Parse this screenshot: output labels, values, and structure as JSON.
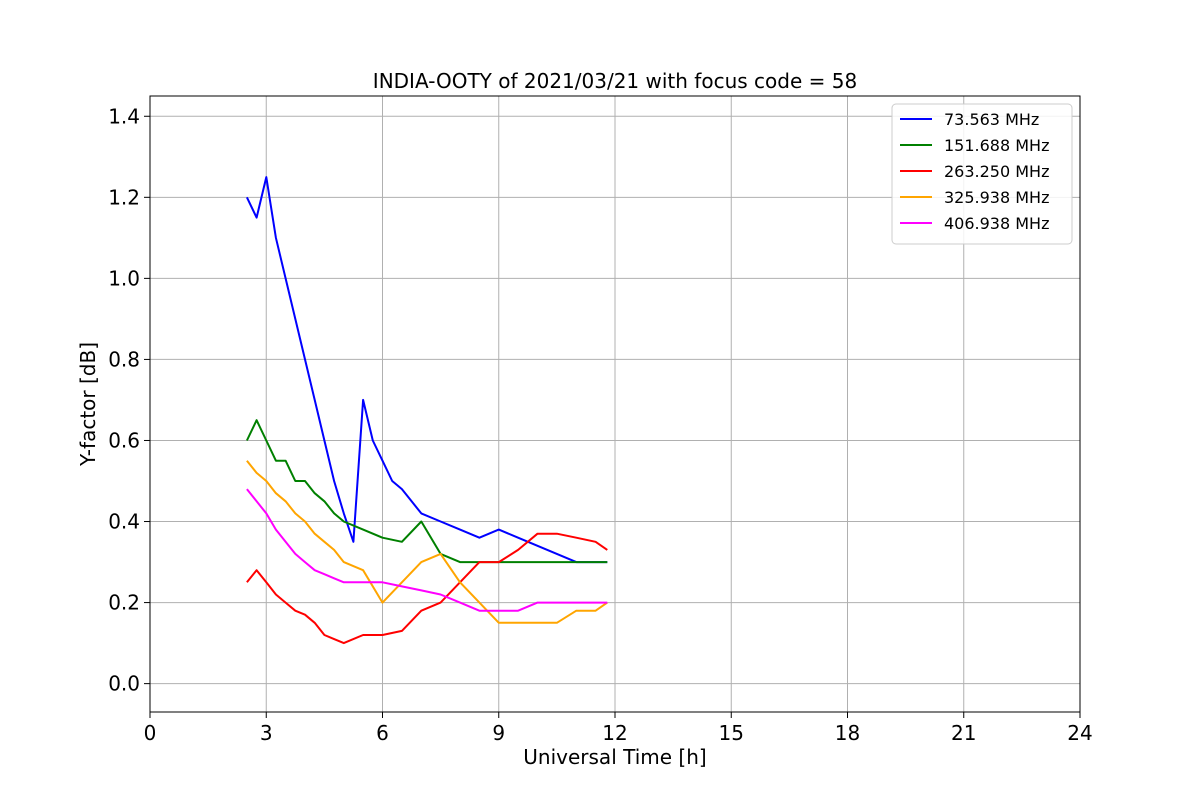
{
  "chart_data": {
    "type": "line",
    "title": "INDIA-OOTY of 2021/03/21 with focus code = 58",
    "xlabel": "Universal Time [h]",
    "ylabel": "Y-factor [dB]",
    "xlim": [
      0,
      24
    ],
    "ylim": [
      -0.07,
      1.45
    ],
    "xticks": [
      0,
      3,
      6,
      9,
      12,
      15,
      18,
      21,
      24
    ],
    "xtick_labels": [
      "0",
      "3",
      "6",
      "9",
      "12",
      "15",
      "18",
      "21",
      "24"
    ],
    "yticks": [
      0.0,
      0.2,
      0.4,
      0.6,
      0.8,
      1.0,
      1.2,
      1.4
    ],
    "ytick_labels": [
      "0.0",
      "0.2",
      "0.4",
      "0.6",
      "0.8",
      "1.0",
      "1.2",
      "1.4"
    ],
    "grid": true,
    "legend_position": "top-right",
    "series": [
      {
        "name": " 73.563 MHz",
        "color": "#0000ff",
        "x": [
          2.5,
          2.75,
          3.0,
          3.25,
          3.5,
          3.75,
          4.0,
          4.25,
          4.5,
          4.75,
          5.0,
          5.25,
          5.5,
          5.75,
          6.0,
          6.25,
          6.5,
          6.75,
          7.0,
          7.5,
          8.0,
          8.5,
          9.0,
          9.5,
          10.0,
          10.5,
          11.0,
          11.5,
          11.8
        ],
        "y": [
          1.2,
          1.15,
          1.25,
          1.1,
          1.0,
          0.9,
          0.8,
          0.7,
          0.6,
          0.5,
          0.42,
          0.35,
          0.7,
          0.6,
          0.55,
          0.5,
          0.48,
          0.45,
          0.42,
          0.4,
          0.38,
          0.36,
          0.38,
          0.36,
          0.34,
          0.32,
          0.3,
          0.3,
          0.3
        ]
      },
      {
        "name": "151.688 MHz",
        "color": "#008000",
        "x": [
          2.5,
          2.75,
          3.0,
          3.25,
          3.5,
          3.75,
          4.0,
          4.25,
          4.5,
          4.75,
          5.0,
          5.5,
          6.0,
          6.5,
          7.0,
          7.5,
          8.0,
          8.5,
          9.0,
          9.5,
          10.0,
          10.5,
          11.0,
          11.5,
          11.8
        ],
        "y": [
          0.6,
          0.65,
          0.6,
          0.55,
          0.55,
          0.5,
          0.5,
          0.47,
          0.45,
          0.42,
          0.4,
          0.38,
          0.36,
          0.35,
          0.4,
          0.32,
          0.3,
          0.3,
          0.3,
          0.3,
          0.3,
          0.3,
          0.3,
          0.3,
          0.3
        ]
      },
      {
        "name": "263.250 MHz",
        "color": "#ff0000",
        "x": [
          2.5,
          2.75,
          3.0,
          3.25,
          3.5,
          3.75,
          4.0,
          4.25,
          4.5,
          4.75,
          5.0,
          5.5,
          6.0,
          6.5,
          7.0,
          7.5,
          8.0,
          8.5,
          9.0,
          9.5,
          10.0,
          10.5,
          11.0,
          11.5,
          11.8
        ],
        "y": [
          0.25,
          0.28,
          0.25,
          0.22,
          0.2,
          0.18,
          0.17,
          0.15,
          0.12,
          0.11,
          0.1,
          0.12,
          0.12,
          0.13,
          0.18,
          0.2,
          0.25,
          0.3,
          0.3,
          0.33,
          0.37,
          0.37,
          0.36,
          0.35,
          0.33
        ]
      },
      {
        "name": "325.938 MHz",
        "color": "#ffa500",
        "x": [
          2.5,
          2.75,
          3.0,
          3.25,
          3.5,
          3.75,
          4.0,
          4.25,
          4.5,
          4.75,
          5.0,
          5.5,
          6.0,
          6.5,
          7.0,
          7.5,
          8.0,
          8.5,
          9.0,
          9.5,
          10.0,
          10.5,
          11.0,
          11.5,
          11.8
        ],
        "y": [
          0.55,
          0.52,
          0.5,
          0.47,
          0.45,
          0.42,
          0.4,
          0.37,
          0.35,
          0.33,
          0.3,
          0.28,
          0.2,
          0.25,
          0.3,
          0.32,
          0.25,
          0.2,
          0.15,
          0.15,
          0.15,
          0.15,
          0.18,
          0.18,
          0.2
        ]
      },
      {
        "name": "406.938 MHz",
        "color": "#ff00ff",
        "x": [
          2.5,
          2.75,
          3.0,
          3.25,
          3.5,
          3.75,
          4.0,
          4.25,
          4.5,
          4.75,
          5.0,
          5.5,
          6.0,
          6.5,
          7.0,
          7.5,
          8.0,
          8.5,
          9.0,
          9.5,
          10.0,
          10.5,
          11.0,
          11.5,
          11.8
        ],
        "y": [
          0.48,
          0.45,
          0.42,
          0.38,
          0.35,
          0.32,
          0.3,
          0.28,
          0.27,
          0.26,
          0.25,
          0.25,
          0.25,
          0.24,
          0.23,
          0.22,
          0.2,
          0.18,
          0.18,
          0.18,
          0.2,
          0.2,
          0.2,
          0.2,
          0.2
        ]
      }
    ]
  }
}
